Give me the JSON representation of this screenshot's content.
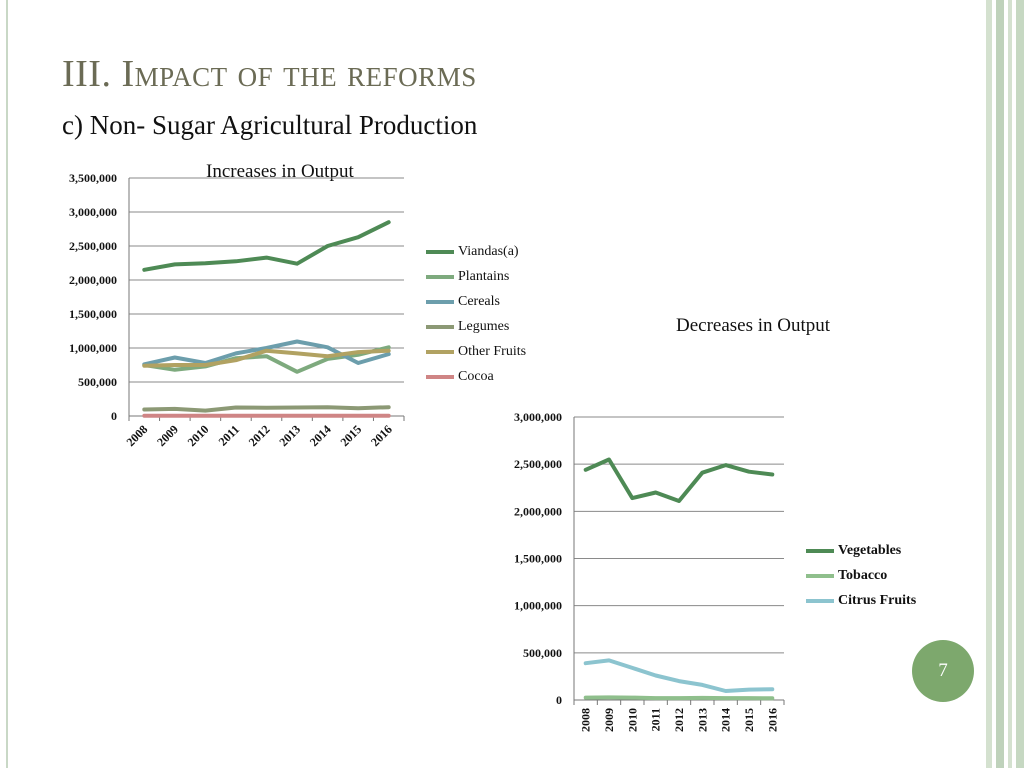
{
  "slide": {
    "title_lead": "III. I",
    "title_rest": "mpact of the reforms",
    "subtitle": "c) Non- Sugar Agricultural Production",
    "page_number": "7",
    "accent_color": "#7da86d"
  },
  "chart_data": [
    {
      "type": "line",
      "title": "Increases in Output",
      "x": [
        "2008",
        "2009",
        "2010",
        "2011",
        "2012",
        "2013",
        "2014",
        "2015",
        "2016"
      ],
      "ylim": [
        0,
        3500000
      ],
      "yticks": [
        "0",
        "500,000",
        "1,000,000",
        "1,500,000",
        "2,000,000",
        "2,500,000",
        "3,000,000",
        "3,500,000"
      ],
      "grid": true,
      "legend_position": "right",
      "series": [
        {
          "name": "Viandas(a)",
          "color": "#4e8a55",
          "values": [
            2150000,
            2230000,
            2245000,
            2275000,
            2330000,
            2240000,
            2500000,
            2630000,
            2850000
          ]
        },
        {
          "name": "Plantains",
          "color": "#7eaa7e",
          "values": [
            750000,
            680000,
            730000,
            850000,
            880000,
            650000,
            840000,
            900000,
            1010000
          ]
        },
        {
          "name": "Cereals",
          "color": "#6c9eac",
          "values": [
            760000,
            860000,
            780000,
            920000,
            1000000,
            1095000,
            1010000,
            780000,
            910000
          ]
        },
        {
          "name": "Legumes",
          "color": "#8c9975",
          "values": [
            95000,
            105000,
            80000,
            125000,
            120000,
            125000,
            130000,
            115000,
            130000
          ]
        },
        {
          "name": "Other Fruits",
          "color": "#b1a262",
          "values": [
            740000,
            750000,
            750000,
            820000,
            960000,
            920000,
            880000,
            940000,
            960000
          ]
        },
        {
          "name": "Cocoa",
          "color": "#cf8585",
          "values": [
            5000,
            5000,
            5000,
            5000,
            5000,
            5000,
            5000,
            5000,
            5000
          ]
        }
      ]
    },
    {
      "type": "line",
      "title": "Decreases in Output",
      "x": [
        "2008",
        "2009",
        "2010",
        "2011",
        "2012",
        "2013",
        "2014",
        "2015",
        "2016"
      ],
      "ylim": [
        0,
        3000000
      ],
      "yticks": [
        "0",
        "500,000",
        "1,000,000",
        "1,500,000",
        "2,000,000",
        "2,500,000",
        "3,000,000"
      ],
      "grid": true,
      "legend_position": "right",
      "series": [
        {
          "name": "Vegetables",
          "color": "#4e8a55",
          "values": [
            2440000,
            2550000,
            2140000,
            2200000,
            2110000,
            2410000,
            2490000,
            2420000,
            2390000
          ]
        },
        {
          "name": "Tobacco",
          "color": "#8fbf8c",
          "values": [
            25000,
            28000,
            25000,
            20000,
            20000,
            22000,
            20000,
            20000,
            18000
          ]
        },
        {
          "name": "Citrus Fruits",
          "color": "#8cc4cf",
          "values": [
            390000,
            420000,
            340000,
            260000,
            200000,
            160000,
            95000,
            110000,
            115000
          ]
        }
      ]
    }
  ]
}
